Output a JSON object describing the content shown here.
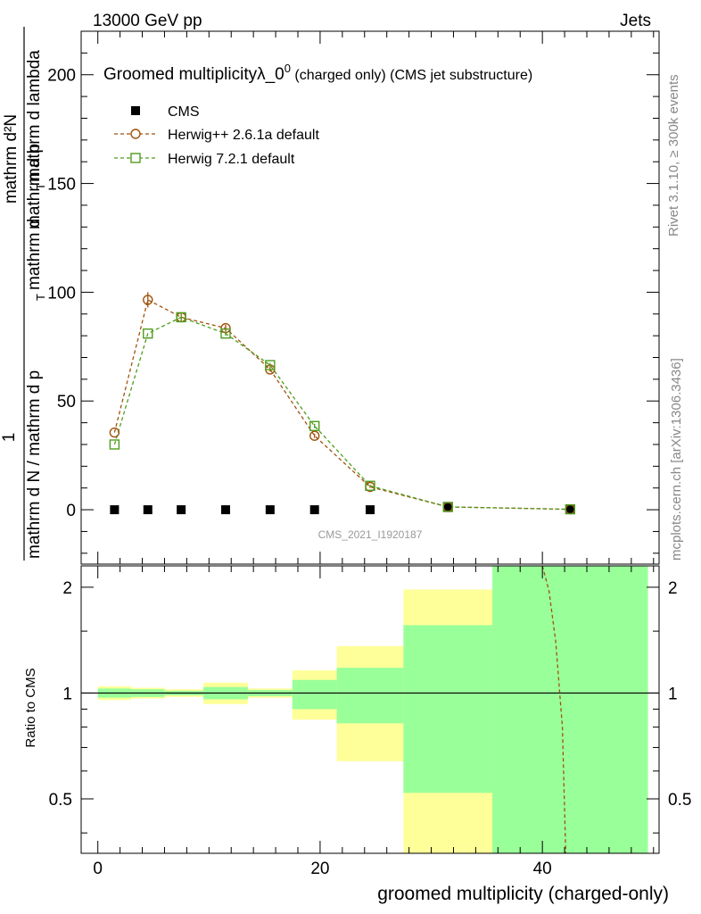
{
  "header": {
    "energy_label": "13000 GeV pp",
    "process_label": "Jets",
    "rivet_label": "Rivet 3.1.10, ≥ 300k events",
    "mcplots_label": "mcplots.cern.ch [arXiv:1306.3436]",
    "analysis_label": "CMS_2021_I1920187"
  },
  "chart_data": [
    {
      "type": "line",
      "panel": "main",
      "title": "Groomed multiplicityλ_0⁰ (charged only) (CMS jet substructure)",
      "ylabel_numerator": "mathrm d²N",
      "ylabel_prefix": "1",
      "ylabel_denominator_a": "mathrm d N / mathrm d p",
      "ylabel_denominator_b": "mathrm d p",
      "ylabel_denominator_c": "mathrm d lambda",
      "ylabel_subscript": "T",
      "ylabel_mid": "mathrm d",
      "xlim": [
        -1.5,
        50.5
      ],
      "ylim": [
        -25,
        220
      ],
      "yticks": [
        0,
        50,
        100,
        150,
        200
      ],
      "legend_position": "top-left",
      "series": [
        {
          "name": "CMS",
          "color": "#000000",
          "marker": "square-filled",
          "x": [
            1.5,
            4.5,
            7.5,
            11.5,
            15.5,
            19.5,
            24.5,
            31.5,
            42.5
          ],
          "y": [
            0,
            0,
            0,
            0,
            0,
            0,
            0,
            1,
            0.2
          ]
        },
        {
          "name": "Herwig++ 2.6.1a default",
          "color": "#a0520d",
          "marker": "circle-open",
          "x": [
            1.5,
            4.5,
            7.5,
            11.5,
            15.5,
            19.5,
            24.5,
            31.5,
            42.5
          ],
          "y": [
            35.5,
            96.5,
            88.5,
            83.5,
            64.5,
            34,
            10.5,
            1.3,
            0.2
          ],
          "err": [
            0,
            3.5,
            2,
            1.5,
            1,
            1,
            0.5,
            0,
            0
          ]
        },
        {
          "name": "Herwig 7.2.1 default",
          "color": "#4f9c1e",
          "marker": "square-open",
          "x": [
            1.5,
            4.5,
            7.5,
            11.5,
            15.5,
            19.5,
            24.5,
            31.5,
            42.5
          ],
          "y": [
            30,
            81,
            88.5,
            81,
            66.5,
            38.5,
            11,
            1.3,
            0.2
          ],
          "err": [
            0,
            0,
            1.5,
            1,
            1,
            1,
            0.5,
            0,
            0
          ]
        }
      ]
    },
    {
      "type": "ratio",
      "panel": "ratio",
      "ylabel": "Ratio to CMS",
      "xlabel": "groomed multiplicity (charged-only)",
      "xlim": [
        -1.5,
        50.5
      ],
      "ylim": [
        0.35,
        2.3
      ],
      "yticks": [
        0.5,
        1,
        2
      ],
      "xticks": [
        0,
        20,
        40
      ],
      "reference": 1,
      "bands": {
        "edges": [
          0,
          3,
          6,
          9.5,
          13.5,
          17.5,
          21.5,
          27.5,
          35.5,
          49.5
        ],
        "yellow_low": [
          0.955,
          0.965,
          0.975,
          0.93,
          0.97,
          0.84,
          0.64,
          0.35,
          0.35
        ],
        "yellow_high": [
          1.045,
          1.035,
          1.025,
          1.07,
          1.03,
          1.16,
          1.36,
          1.97,
          2.3
        ],
        "green_low": [
          0.97,
          0.975,
          0.985,
          0.96,
          0.98,
          0.9,
          0.82,
          0.52,
          0.35
        ],
        "green_high": [
          1.03,
          1.025,
          1.015,
          1.04,
          1.02,
          1.09,
          1.18,
          1.56,
          2.3
        ],
        "yellow_color": "#ffff99",
        "green_color": "#99ff99"
      },
      "curve": {
        "name": "Herwig++ 2.6.1a default",
        "color": "#a0520d",
        "x": [
          40,
          40.6,
          41.2,
          41.8,
          42.1
        ],
        "y": [
          2.3,
          1.95,
          1.4,
          0.8,
          0.35
        ]
      }
    }
  ]
}
